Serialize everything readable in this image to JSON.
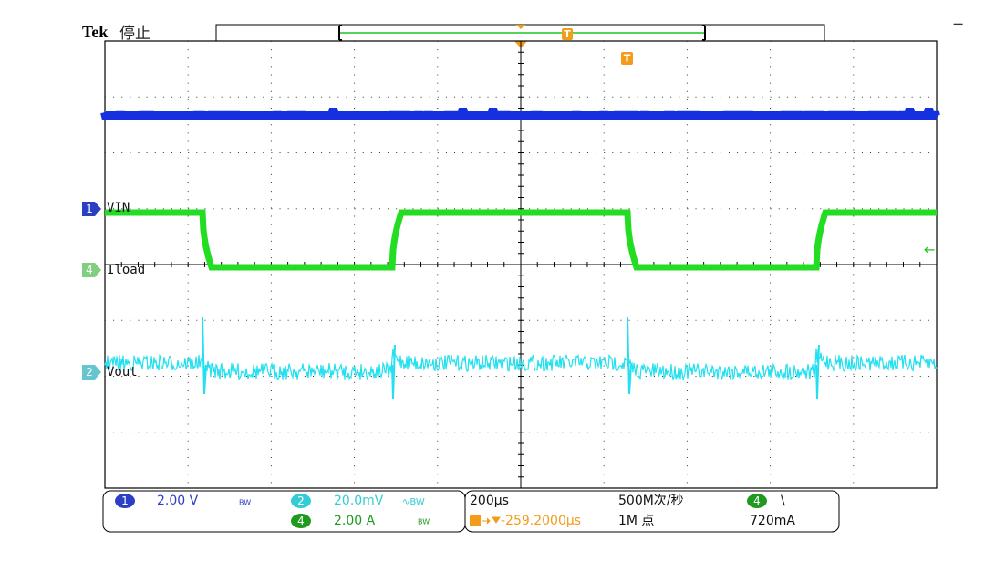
{
  "header": {
    "brand": "Tek",
    "status": "停止"
  },
  "channels": [
    {
      "marker": "1",
      "label": "VIN"
    },
    {
      "marker": "4",
      "label": "Iload"
    },
    {
      "marker": "2",
      "label": "Vout"
    }
  ],
  "trigger_marker": "T",
  "side_marks": {
    "top_right": "−",
    "right_arrow": "←"
  },
  "status_bar": {
    "ch1": {
      "marker": "1",
      "scale": "2.00 V",
      "bw": "BW"
    },
    "ch2": {
      "marker": "2",
      "scale": "20.0mV",
      "bw": "∿BW"
    },
    "ch4": {
      "marker": "4",
      "scale": "2.00 A",
      "bw": "BW"
    },
    "timebase": "200µs",
    "sample_rate": "500M次/秒",
    "trigger_position": "-259.2000µs",
    "record_length": "1M 点",
    "trigger": {
      "marker": "4",
      "slope": "\\",
      "level": "720mA"
    }
  }
}
